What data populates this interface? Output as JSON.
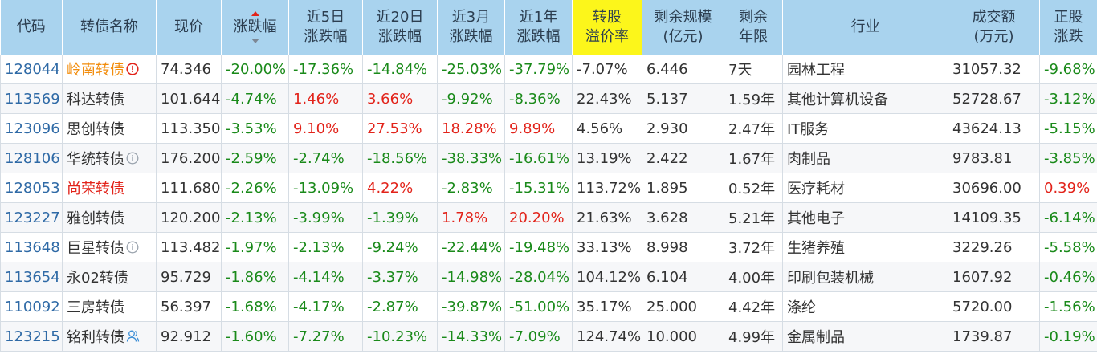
{
  "headers": {
    "code": "代码",
    "name": "转债名称",
    "price": "现价",
    "change": [
      "涨跌幅"
    ],
    "chg5": [
      "近5日",
      "涨跌幅"
    ],
    "chg20": [
      "近20日",
      "涨跌幅"
    ],
    "chg3m": [
      "近3月",
      "涨跌幅"
    ],
    "chg1y": [
      "近1年",
      "涨跌幅"
    ],
    "premium": [
      "转股",
      "溢价率"
    ],
    "scale": [
      "剩余规模",
      "(亿元)"
    ],
    "years": [
      "剩余",
      "年限"
    ],
    "industry": "行业",
    "volume": [
      "成交额",
      "(万元)"
    ],
    "stock_chg": [
      "正股",
      "涨跌"
    ]
  },
  "highlight_color": "#fcf61b",
  "header_color": "#a9d3ee",
  "rows": [
    {
      "code": "128044",
      "name": "岭南转债",
      "name_color": "orange",
      "icon": "alert-circle-icon",
      "price": "74.346",
      "change": "-20.00%",
      "chg5": "-17.36%",
      "chg20": "-14.84%",
      "chg3m": "-25.03%",
      "chg1y": "-37.79%",
      "premium": "-7.07%",
      "scale": "6.446",
      "years": "7天",
      "industry": "园林工程",
      "volume": "31057.32",
      "stock_chg": "-9.68%"
    },
    {
      "code": "113569",
      "name": "科达转债",
      "name_color": "dark",
      "icon": "",
      "price": "101.644",
      "change": "-4.74%",
      "chg5": "1.46%",
      "chg20": "3.66%",
      "chg3m": "-9.92%",
      "chg1y": "-8.36%",
      "premium": "22.43%",
      "scale": "5.137",
      "years": "1.59年",
      "industry": "其他计算机设备",
      "volume": "52728.67",
      "stock_chg": "-3.12%"
    },
    {
      "code": "123096",
      "name": "思创转债",
      "name_color": "dark",
      "icon": "",
      "price": "113.350",
      "change": "-3.53%",
      "chg5": "9.10%",
      "chg20": "27.53%",
      "chg3m": "18.28%",
      "chg1y": "9.89%",
      "premium": "4.56%",
      "scale": "2.930",
      "years": "2.47年",
      "industry": "IT服务",
      "volume": "43624.13",
      "stock_chg": "-5.15%"
    },
    {
      "code": "128106",
      "name": "华统转债",
      "name_color": "dark",
      "icon": "info-circle-icon",
      "price": "176.200",
      "change": "-2.59%",
      "chg5": "-2.74%",
      "chg20": "-18.56%",
      "chg3m": "-38.33%",
      "chg1y": "-16.61%",
      "premium": "13.19%",
      "scale": "2.422",
      "years": "1.67年",
      "industry": "肉制品",
      "volume": "9783.81",
      "stock_chg": "-3.85%"
    },
    {
      "code": "128053",
      "name": "尚荣转债",
      "name_color": "red",
      "icon": "",
      "price": "111.680",
      "change": "-2.26%",
      "chg5": "-13.09%",
      "chg20": "4.22%",
      "chg3m": "-2.83%",
      "chg1y": "-15.31%",
      "premium": "113.72%",
      "scale": "1.895",
      "years": "0.52年",
      "industry": "医疗耗材",
      "volume": "30696.00",
      "stock_chg": "0.39%"
    },
    {
      "code": "123227",
      "name": "雅创转债",
      "name_color": "dark",
      "icon": "",
      "price": "120.200",
      "change": "-2.13%",
      "chg5": "-3.99%",
      "chg20": "-1.39%",
      "chg3m": "1.78%",
      "chg1y": "20.20%",
      "premium": "21.63%",
      "scale": "3.628",
      "years": "5.21年",
      "industry": "其他电子",
      "volume": "14109.35",
      "stock_chg": "-6.14%"
    },
    {
      "code": "113648",
      "name": "巨星转债",
      "name_color": "dark",
      "icon": "info-circle-icon",
      "price": "113.482",
      "change": "-1.97%",
      "chg5": "-2.13%",
      "chg20": "-9.24%",
      "chg3m": "-22.44%",
      "chg1y": "-19.48%",
      "premium": "33.13%",
      "scale": "8.998",
      "years": "3.72年",
      "industry": "生猪养殖",
      "volume": "3229.26",
      "stock_chg": "-5.58%"
    },
    {
      "code": "113654",
      "name": "永02转债",
      "name_color": "dark",
      "icon": "",
      "price": "95.729",
      "change": "-1.86%",
      "chg5": "-4.14%",
      "chg20": "-3.37%",
      "chg3m": "-14.98%",
      "chg1y": "-28.04%",
      "premium": "104.12%",
      "scale": "6.104",
      "years": "4.00年",
      "industry": "印刷包装机械",
      "volume": "1607.92",
      "stock_chg": "-0.46%"
    },
    {
      "code": "110092",
      "name": "三房转债",
      "name_color": "dark",
      "icon": "",
      "price": "56.397",
      "change": "-1.68%",
      "chg5": "-4.17%",
      "chg20": "-2.87%",
      "chg3m": "-39.87%",
      "chg1y": "-51.00%",
      "premium": "35.17%",
      "scale": "25.000",
      "years": "4.42年",
      "industry": "涤纶",
      "volume": "5720.00",
      "stock_chg": "-1.56%"
    },
    {
      "code": "123215",
      "name": "铭利转债",
      "name_color": "dark",
      "icon": "user-icon",
      "price": "92.912",
      "change": "-1.60%",
      "chg5": "-7.27%",
      "chg20": "-10.23%",
      "chg3m": "-14.33%",
      "chg1y": "-7.09%",
      "premium": "124.74%",
      "scale": "10.000",
      "years": "4.99年",
      "industry": "金属制品",
      "volume": "1739.87",
      "stock_chg": "-0.19%"
    }
  ]
}
